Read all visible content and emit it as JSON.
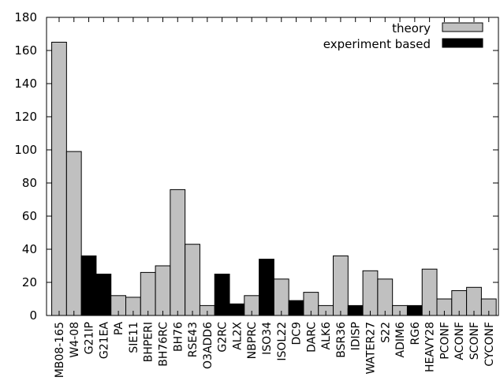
{
  "chart_data": {
    "type": "bar",
    "title": "",
    "xlabel": "",
    "ylabel": "",
    "ylim": [
      0,
      180
    ],
    "yticks": [
      0,
      20,
      40,
      60,
      80,
      100,
      120,
      140,
      160,
      180
    ],
    "grid": false,
    "legend_position": "top-right",
    "categories": [
      "MB08-165",
      "W4-08",
      "G21IP",
      "G21EA",
      "PA",
      "SIE11",
      "BHPERI",
      "BH76RC",
      "BH76",
      "RSE43",
      "O3ADD6",
      "G2RC",
      "AL2X",
      "NBPRC",
      "ISO34",
      "ISOL22",
      "DC9",
      "DARC",
      "ALK6",
      "BSR36",
      "IDISP",
      "WATER27",
      "S22",
      "ADIM6",
      "RG6",
      "HEAVY28",
      "PCONF",
      "ACONF",
      "SCONF",
      "CYCONF"
    ],
    "series": [
      {
        "name": "theory",
        "color": "#c0c0c0",
        "values": [
          165,
          99,
          0,
          0,
          12,
          11,
          26,
          30,
          76,
          43,
          6,
          0,
          0,
          12,
          0,
          22,
          7,
          14,
          6,
          36,
          4,
          27,
          22,
          6,
          4,
          28,
          10,
          15,
          17,
          10
        ]
      },
      {
        "name": "experiment based",
        "color": "#000000",
        "values": [
          0,
          0,
          36,
          25,
          0,
          0,
          0,
          0,
          0,
          0,
          0,
          25,
          7,
          0,
          34,
          0,
          9,
          0,
          0,
          0,
          6,
          0,
          0,
          0,
          6,
          0,
          0,
          0,
          0,
          0
        ]
      }
    ]
  }
}
